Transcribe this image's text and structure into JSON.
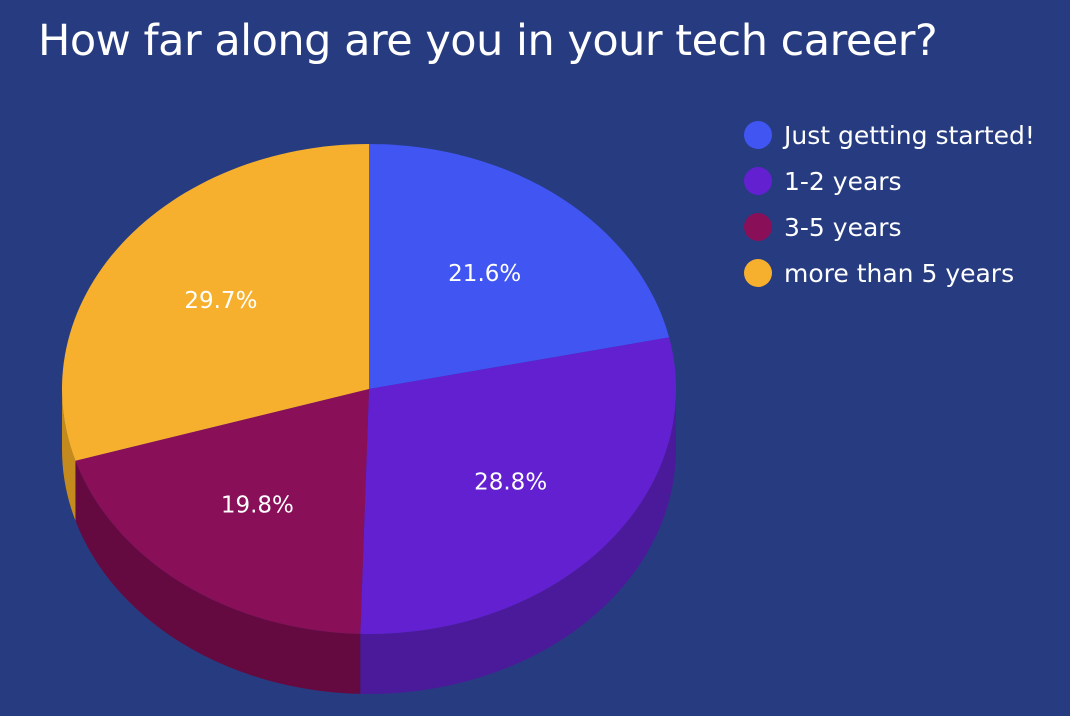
{
  "chart_data": {
    "type": "pie",
    "title": "How far along are you in your tech career?",
    "categories": [
      "Just getting started!",
      "1-2 years",
      "3-5 years",
      "more than 5 years"
    ],
    "values": [
      21.6,
      28.8,
      19.8,
      29.7
    ],
    "labels": [
      "21.6%",
      "28.8%",
      "19.8%",
      "29.7%"
    ],
    "colors": [
      "#4055f2",
      "#6320d0",
      "#880f58",
      "#f6b02e"
    ],
    "side_colors": [
      "#2f3fb8",
      "#4a1a9a",
      "#640a40",
      "#c58a1e"
    ],
    "legend_position": "top-right",
    "style": "3d-tilted"
  }
}
